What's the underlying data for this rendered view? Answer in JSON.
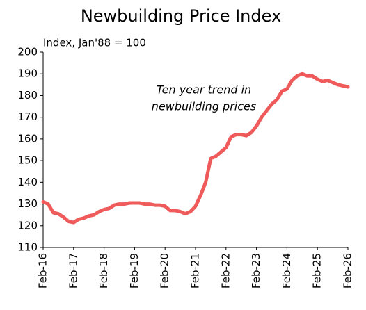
{
  "chart_data": {
    "type": "line",
    "title": "Newbuilding Price Index",
    "subtitle": "Index, Jan'88 = 100",
    "annotation": [
      "Ten year trend in",
      "newbuilding prices"
    ],
    "categories": [
      "Feb-16",
      null,
      null,
      null,
      null,
      null,
      "Feb-17",
      null,
      null,
      null,
      null,
      null,
      "Feb-18",
      null,
      null,
      null,
      null,
      null,
      "Feb-19",
      null,
      null,
      null,
      null,
      null,
      "Feb-20",
      null,
      null,
      null,
      null,
      null,
      "Feb-21",
      null,
      null,
      null,
      null,
      null,
      "Feb-22",
      null,
      null,
      null,
      null,
      null,
      "Feb-23",
      null,
      null,
      null,
      null,
      null,
      "Feb-24",
      null,
      null,
      null,
      null,
      null,
      "Feb-25",
      null,
      null,
      null,
      null,
      null,
      "Feb-26"
    ],
    "series": [
      {
        "name": "Newbuilding Price Index",
        "color": "#ef5b5b",
        "values": [
          131,
          130,
          126,
          125.5,
          124,
          122,
          121.5,
          123,
          123.5,
          124.5,
          125,
          126.5,
          127.5,
          128,
          129.5,
          130,
          130,
          130.5,
          130.5,
          130.5,
          130,
          130,
          129.5,
          129.5,
          129,
          127,
          127,
          126.5,
          125.5,
          126.5,
          129,
          134,
          140,
          151,
          152,
          154,
          156,
          161,
          162,
          162,
          161.5,
          163,
          166,
          170,
          173,
          176,
          178,
          182,
          183,
          187,
          189,
          190,
          189,
          189,
          187.5,
          186.5,
          187,
          186,
          185,
          184.5,
          184
        ]
      }
    ],
    "ylim": [
      110,
      200
    ],
    "yticks": [
      110,
      120,
      130,
      140,
      150,
      160,
      170,
      180,
      190,
      200
    ],
    "grid": false
  }
}
